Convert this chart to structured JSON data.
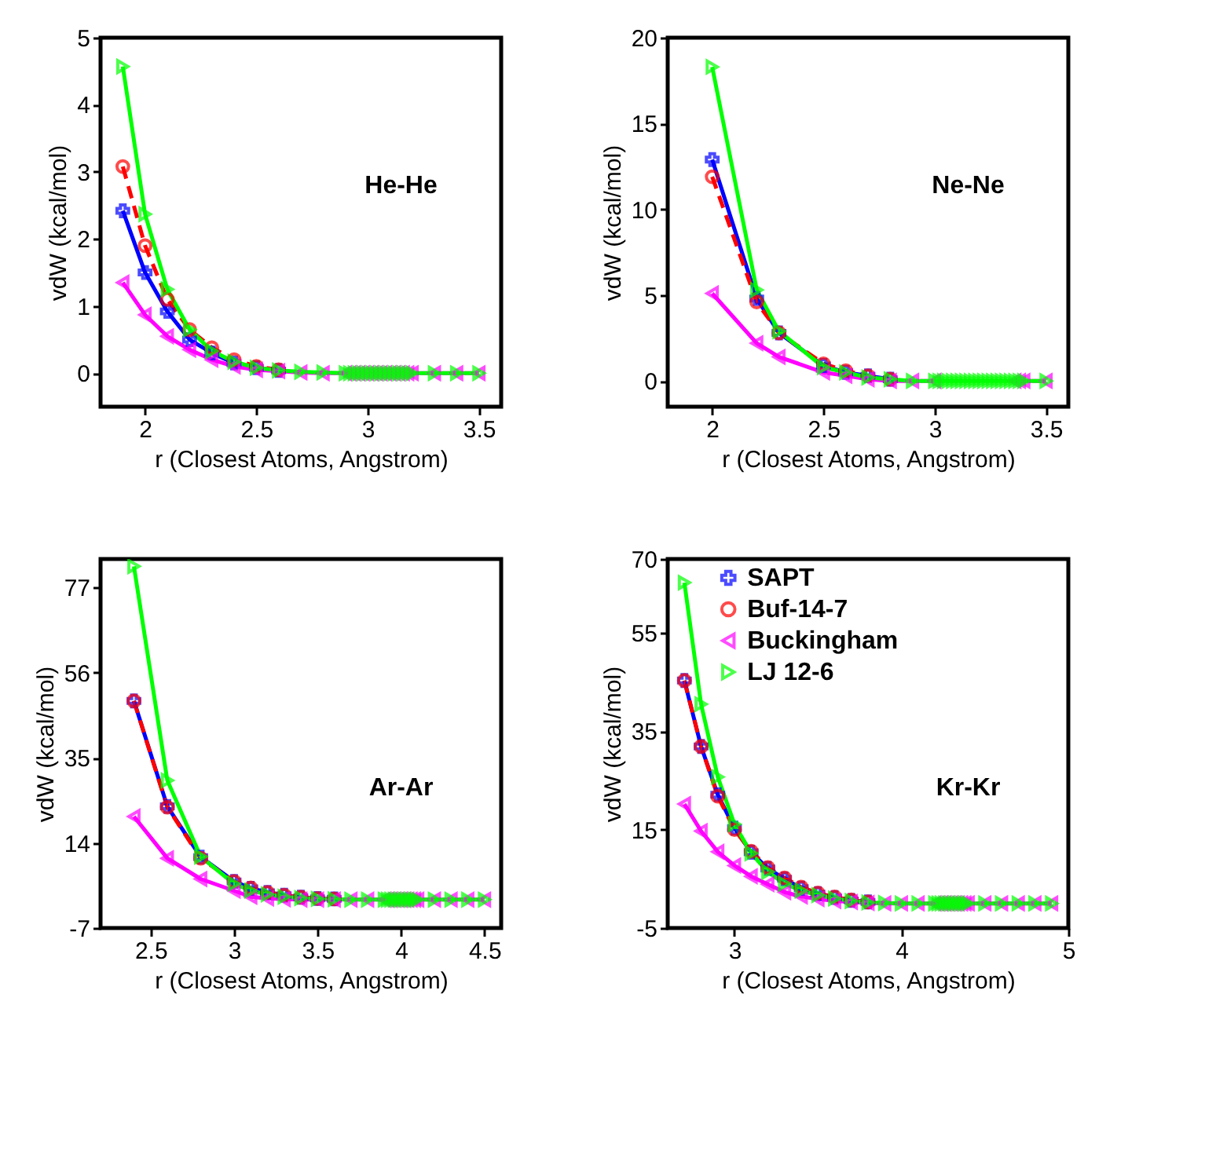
{
  "chart_data": [
    {
      "type": "line",
      "xlabel": "r (Closest Atoms, Angstrom)",
      "ylabel": "vdW (kcal/mol)",
      "annotations": [
        "He-He"
      ],
      "xlim": [
        1.8,
        3.6
      ],
      "ylim": [
        -0.5,
        5
      ],
      "xticks": [
        2,
        2.5,
        3,
        3.5
      ],
      "yticks": [
        0,
        1,
        2,
        3,
        4,
        5
      ],
      "grid": false,
      "legend": false,
      "x": [
        1.9,
        2.0,
        2.1,
        2.2,
        2.3,
        2.4,
        2.5,
        2.6,
        2.7,
        2.8,
        2.9,
        2.92,
        2.94,
        2.96,
        2.98,
        3.0,
        3.02,
        3.04,
        3.06,
        3.08,
        3.1,
        3.12,
        3.14,
        3.16,
        3.18,
        3.2,
        3.3,
        3.4,
        3.5
      ],
      "series": [
        {
          "color": "#0000ff",
          "marker": "cross",
          "line_style": "solid",
          "values": [
            2.42,
            1.5,
            0.92,
            0.5,
            0.3,
            0.15,
            0.08,
            0.04,
            null,
            null,
            null,
            null,
            null,
            null,
            null,
            null,
            null,
            null,
            null,
            null,
            null,
            null,
            null,
            null,
            null,
            null,
            null,
            null,
            null
          ]
        },
        {
          "color": "#ff0000",
          "marker": "circle",
          "line_style": "dashed",
          "values": [
            3.08,
            1.9,
            1.1,
            0.65,
            0.38,
            0.2,
            0.1,
            0.05,
            null,
            null,
            null,
            null,
            null,
            null,
            null,
            null,
            null,
            null,
            null,
            null,
            null,
            null,
            null,
            null,
            null,
            null,
            null,
            null,
            null
          ]
        },
        {
          "color": "#ff00ff",
          "marker": "triangle-left",
          "line_style": "solid",
          "values": [
            1.35,
            0.87,
            0.55,
            0.35,
            0.2,
            0.1,
            0.05,
            0.03,
            0.01,
            0,
            0,
            0,
            0,
            0,
            0,
            0,
            0,
            0,
            0,
            0,
            0,
            0,
            0,
            0,
            0,
            0,
            0,
            0,
            0
          ]
        },
        {
          "color": "#00ff00",
          "marker": "triangle-right",
          "line_style": "solid",
          "values": [
            4.57,
            2.37,
            1.25,
            0.65,
            0.33,
            0.17,
            0.08,
            0.04,
            0.02,
            0.01,
            0,
            0,
            0,
            0,
            0,
            0,
            0,
            0,
            0,
            0,
            0,
            0,
            0,
            0,
            0,
            0,
            0,
            0,
            0
          ]
        }
      ]
    },
    {
      "type": "line",
      "xlabel": "r (Closest Atoms, Angstrom)",
      "ylabel": "vdW (kcal/mol)",
      "annotations": [
        "Ne-Ne"
      ],
      "xlim": [
        1.8,
        3.6
      ],
      "ylim": [
        -1.5,
        20
      ],
      "xticks": [
        2,
        2.5,
        3,
        3.5
      ],
      "yticks": [
        0,
        5,
        10,
        15,
        20
      ],
      "grid": false,
      "legend": false,
      "x": [
        2.0,
        2.2,
        2.3,
        2.5,
        2.6,
        2.7,
        2.8,
        2.9,
        3.0,
        3.02,
        3.04,
        3.06,
        3.08,
        3.1,
        3.12,
        3.14,
        3.16,
        3.18,
        3.2,
        3.22,
        3.24,
        3.26,
        3.28,
        3.3,
        3.32,
        3.34,
        3.36,
        3.38,
        3.4,
        3.5
      ],
      "series": [
        {
          "color": "#0000ff",
          "marker": "cross",
          "line_style": "solid",
          "values": [
            12.9,
            4.8,
            2.8,
            0.9,
            0.5,
            0.3,
            0.1,
            null,
            null,
            null,
            null,
            null,
            null,
            null,
            null,
            null,
            null,
            null,
            null,
            null,
            null,
            null,
            null,
            null,
            null,
            null,
            null,
            null,
            null,
            null
          ]
        },
        {
          "color": "#ff0000",
          "marker": "circle",
          "line_style": "dashed",
          "values": [
            11.9,
            4.6,
            2.8,
            1.0,
            0.6,
            0.3,
            0.1,
            null,
            null,
            null,
            null,
            null,
            null,
            null,
            null,
            null,
            null,
            null,
            null,
            null,
            null,
            null,
            null,
            null,
            null,
            null,
            null,
            null,
            null,
            null
          ]
        },
        {
          "color": "#ff00ff",
          "marker": "triangle-left",
          "line_style": "solid",
          "values": [
            5.1,
            2.2,
            1.4,
            0.5,
            0.3,
            0.1,
            0,
            0,
            0,
            null,
            null,
            null,
            null,
            null,
            null,
            null,
            null,
            null,
            null,
            null,
            null,
            null,
            null,
            null,
            null,
            null,
            0,
            0,
            0,
            0
          ]
        },
        {
          "color": "#00ff00",
          "marker": "triangle-right",
          "line_style": "solid",
          "values": [
            18.3,
            5.3,
            2.9,
            0.8,
            0.5,
            0.2,
            0.1,
            0,
            0,
            0,
            0,
            0,
            0,
            0,
            0,
            0,
            0,
            0,
            0,
            0,
            0,
            0,
            0,
            0,
            0,
            0,
            0,
            0,
            0,
            0
          ]
        }
      ]
    },
    {
      "type": "line",
      "xlabel": "r (Closest Atoms, Angstrom)",
      "ylabel": "vdW (kcal/mol)",
      "annotations": [
        "Ar-Ar"
      ],
      "xlim": [
        2.2,
        4.6
      ],
      "ylim": [
        -7,
        84
      ],
      "xticks": [
        2.5,
        3,
        3.5,
        4,
        4.5
      ],
      "yticks": [
        -7,
        14,
        35,
        56,
        77
      ],
      "grid": false,
      "legend": false,
      "x": [
        2.4,
        2.6,
        2.8,
        3.0,
        3.1,
        3.2,
        3.3,
        3.4,
        3.5,
        3.6,
        3.7,
        3.8,
        3.9,
        3.92,
        3.94,
        3.96,
        3.98,
        4.0,
        4.02,
        4.04,
        4.06,
        4.08,
        4.1,
        4.2,
        4.3,
        4.4,
        4.5
      ],
      "series": [
        {
          "color": "#0000ff",
          "marker": "cross",
          "line_style": "solid",
          "values": [
            49,
            23,
            10.5,
            4.5,
            2.8,
            1.8,
            1.1,
            0.6,
            0.3,
            0.2,
            null,
            null,
            null,
            null,
            null,
            null,
            null,
            null,
            null,
            null,
            null,
            null,
            null,
            null,
            null,
            null,
            null
          ]
        },
        {
          "color": "#ff0000",
          "marker": "circle",
          "line_style": "dashed",
          "values": [
            49,
            22.8,
            10.2,
            4.5,
            2.9,
            1.8,
            1.1,
            0.6,
            0.3,
            0.2,
            null,
            null,
            null,
            null,
            null,
            null,
            null,
            null,
            null,
            null,
            null,
            null,
            null,
            null,
            null,
            null,
            null
          ]
        },
        {
          "color": "#ff00ff",
          "marker": "triangle-left",
          "line_style": "solid",
          "values": [
            20.5,
            10.2,
            5.1,
            2.2,
            0.7,
            0.3,
            0.1,
            0,
            0,
            0,
            0,
            0,
            0,
            0,
            0,
            0,
            0,
            0,
            0,
            0,
            0,
            0,
            0,
            0,
            0,
            0,
            0
          ]
        },
        {
          "color": "#00ff00",
          "marker": "triangle-right",
          "line_style": "solid",
          "values": [
            82.2,
            29.4,
            10.6,
            3.9,
            2.2,
            1.3,
            0.7,
            0.4,
            0.2,
            0.1,
            0,
            0,
            0,
            0,
            0,
            0,
            0,
            0,
            0,
            0,
            0,
            0,
            0,
            0,
            0,
            0,
            0
          ]
        }
      ]
    },
    {
      "type": "line",
      "xlabel": "r (Closest Atoms, Angstrom)",
      "ylabel": "vdW (kcal/mol)",
      "annotations": [
        "Kr-Kr"
      ],
      "xlim": [
        2.6,
        5
      ],
      "ylim": [
        -5,
        70
      ],
      "xticks": [
        3,
        4,
        5
      ],
      "yticks": [
        -5,
        15,
        35,
        55,
        70
      ],
      "grid": false,
      "legend": "top",
      "x": [
        2.7,
        2.8,
        2.9,
        3.0,
        3.1,
        3.2,
        3.3,
        3.4,
        3.5,
        3.6,
        3.7,
        3.8,
        3.9,
        4.0,
        4.1,
        4.2,
        4.22,
        4.24,
        4.26,
        4.28,
        4.3,
        4.32,
        4.34,
        4.36,
        4.38,
        4.4,
        4.5,
        4.6,
        4.7,
        4.8,
        4.9
      ],
      "series": [
        {
          "name": "SAPT",
          "color": "#0000ff",
          "marker": "cross",
          "line_style": "solid",
          "values": [
            45.3,
            31.9,
            22.1,
            15.3,
            10.4,
            7.1,
            5,
            3.1,
            2,
            1.2,
            0.6,
            0.3,
            null,
            null,
            null,
            null,
            null,
            null,
            null,
            null,
            null,
            null,
            null,
            null,
            null,
            null,
            null,
            null,
            null,
            null,
            null
          ]
        },
        {
          "name": "Buf-14-7",
          "color": "#ff0000",
          "marker": "circle",
          "line_style": "dashed",
          "values": [
            45.3,
            31.9,
            21.8,
            15,
            10.6,
            7.3,
            5.2,
            3.3,
            2.1,
            1.3,
            0.7,
            0.3,
            null,
            null,
            null,
            null,
            null,
            null,
            null,
            null,
            null,
            null,
            null,
            null,
            null,
            null,
            null,
            null,
            null,
            null,
            null
          ]
        },
        {
          "name": "Buckingham",
          "color": "#ff00ff",
          "marker": "triangle-left",
          "line_style": "solid",
          "values": [
            20.2,
            14.7,
            10.5,
            7.7,
            5.5,
            3.9,
            2.3,
            1.4,
            0.9,
            0.5,
            0.3,
            0.1,
            0,
            0,
            0,
            0,
            0,
            0,
            0,
            0,
            0,
            0,
            0,
            0,
            0,
            0,
            0,
            0,
            0,
            0,
            0
          ]
        },
        {
          "name": "LJ 12-6",
          "color": "#00ff00",
          "marker": "triangle-right",
          "line_style": "solid",
          "values": [
            65.2,
            40.5,
            25.7,
            16.1,
            10.2,
            6.4,
            4,
            2.6,
            1.7,
            1,
            0.5,
            0.2,
            0.1,
            0,
            0,
            0,
            0,
            0,
            0,
            0,
            0,
            0,
            0,
            0,
            0,
            0,
            0,
            0,
            0,
            0,
            0
          ]
        }
      ]
    }
  ]
}
